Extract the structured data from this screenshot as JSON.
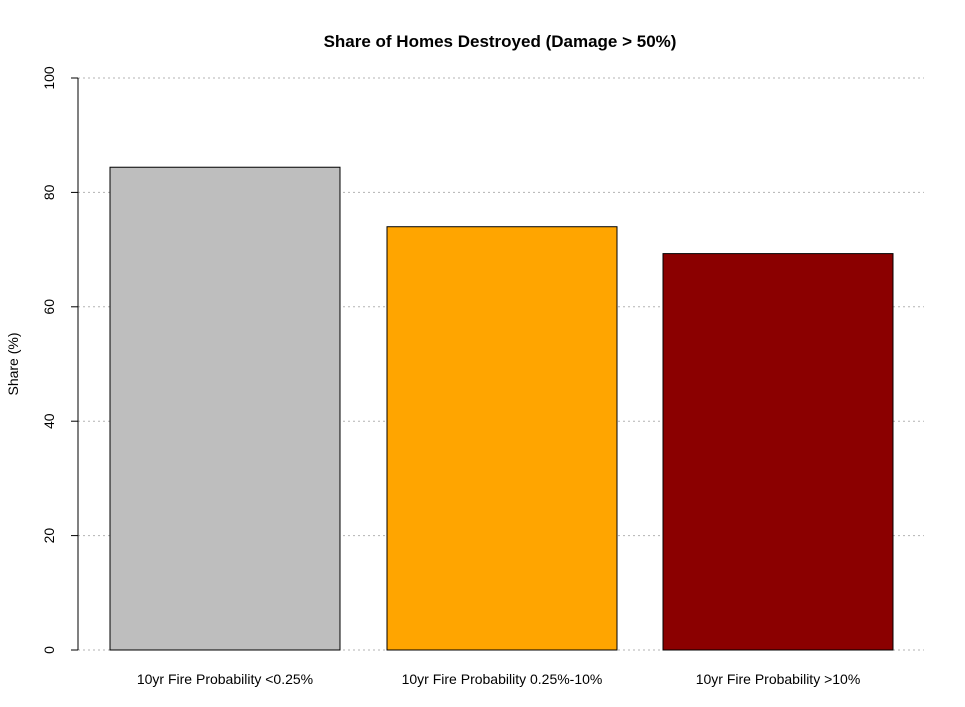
{
  "chart_data": {
    "type": "bar",
    "title": "Share of Homes Destroyed (Damage > 50%)",
    "xlabel": "",
    "ylabel": "Share (%)",
    "ylim": [
      0,
      100
    ],
    "yticks": [
      "0",
      "20",
      "40",
      "60",
      "80",
      "100"
    ],
    "grid": true,
    "categories": [
      "10yr Fire Probability <0.25%",
      "10yr Fire Probability 0.25%-10%",
      "10yr Fire Probability >10%"
    ],
    "values": [
      84.4,
      74.0,
      69.3
    ],
    "colors": [
      "#bebebe",
      "#ffa500",
      "#8b0000"
    ]
  }
}
